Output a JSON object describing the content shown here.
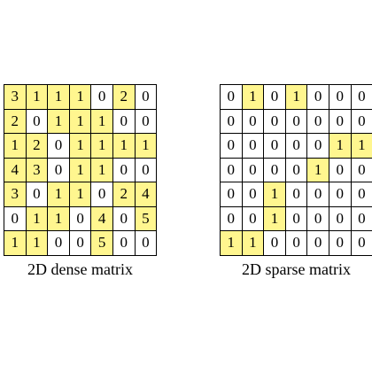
{
  "colors": {
    "highlight": "#fff68f",
    "empty": "#ffffff",
    "border": "#000000"
  },
  "dense": {
    "caption": "2D dense matrix",
    "rows": [
      [
        "3",
        "1",
        "1",
        "1",
        "0",
        "2",
        "0"
      ],
      [
        "2",
        "0",
        "1",
        "1",
        "1",
        "0",
        "0"
      ],
      [
        "1",
        "2",
        "0",
        "1",
        "1",
        "1",
        "1"
      ],
      [
        "4",
        "3",
        "0",
        "1",
        "1",
        "0",
        "0"
      ],
      [
        "3",
        "0",
        "1",
        "1",
        "0",
        "2",
        "4"
      ],
      [
        "0",
        "1",
        "1",
        "0",
        "4",
        "0",
        "5"
      ],
      [
        "1",
        "1",
        "0",
        "0",
        "5",
        "0",
        "0"
      ]
    ]
  },
  "sparse": {
    "caption": "2D sparse matrix",
    "rows": [
      [
        "0",
        "1",
        "0",
        "1",
        "0",
        "0",
        "0"
      ],
      [
        "0",
        "0",
        "0",
        "0",
        "0",
        "0",
        "0"
      ],
      [
        "0",
        "0",
        "0",
        "0",
        "0",
        "1",
        "1"
      ],
      [
        "0",
        "0",
        "0",
        "0",
        "1",
        "0",
        "0"
      ],
      [
        "0",
        "0",
        "1",
        "0",
        "0",
        "0",
        "0"
      ],
      [
        "0",
        "0",
        "1",
        "0",
        "0",
        "0",
        "0"
      ],
      [
        "1",
        "1",
        "0",
        "0",
        "0",
        "0",
        "0"
      ]
    ]
  }
}
